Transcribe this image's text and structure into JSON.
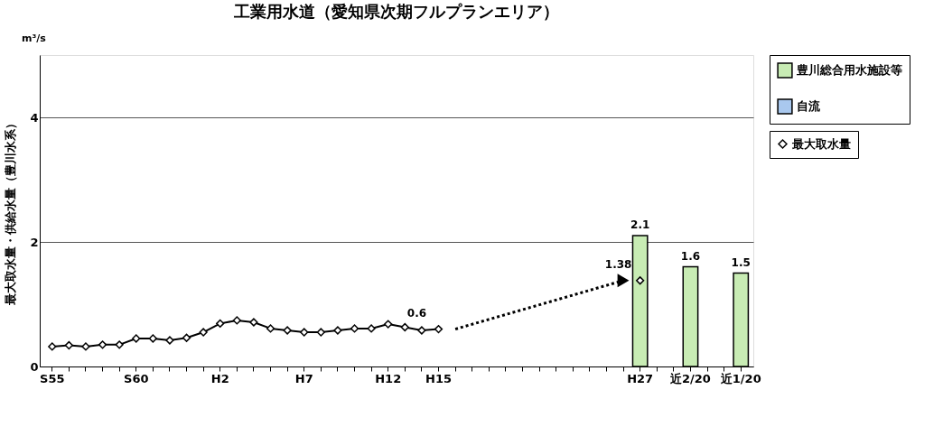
{
  "chart_data": {
    "type": "bar",
    "title": "工業用水道（愛知県次期フルプランエリア）",
    "ylabel": "最大取水量・供給水量（豊川水系）",
    "annotations": [
      "m³/s"
    ],
    "categories": [
      "S55",
      null,
      null,
      null,
      null,
      "S60",
      null,
      null,
      null,
      null,
      "H2",
      null,
      null,
      null,
      null,
      "H7",
      null,
      null,
      null,
      null,
      "H12",
      null,
      null,
      "H15",
      null,
      null,
      null,
      null,
      null,
      null,
      null,
      null,
      null,
      null,
      null,
      "H27",
      null,
      null,
      "近2/20",
      null,
      null,
      "近1/20"
    ],
    "ylim": [
      0,
      5
    ],
    "yticks": [
      0,
      2,
      4
    ],
    "grid": "y",
    "legend": "top right",
    "series": [
      {
        "name": "豊川総合用水施設等",
        "color": "#c8ecb4",
        "values": [
          null,
          null,
          null,
          null,
          null,
          null,
          null,
          null,
          null,
          null,
          null,
          null,
          null,
          null,
          null,
          null,
          null,
          null,
          null,
          null,
          null,
          null,
          null,
          null,
          null,
          null,
          null,
          null,
          null,
          null,
          null,
          null,
          null,
          null,
          null,
          2.1,
          null,
          null,
          1.6,
          null,
          null,
          1.5
        ],
        "value_labels": [
          null,
          null,
          null,
          null,
          null,
          null,
          null,
          null,
          null,
          null,
          null,
          null,
          null,
          null,
          null,
          null,
          null,
          null,
          null,
          null,
          null,
          null,
          null,
          null,
          null,
          null,
          null,
          null,
          null,
          null,
          null,
          null,
          null,
          null,
          null,
          "2.1",
          null,
          null,
          "1.6",
          null,
          null,
          "1.5"
        ]
      },
      {
        "name": "自流",
        "color": "#a9c8ee",
        "values": [
          null,
          null,
          null,
          null,
          null,
          null,
          null,
          null,
          null,
          null,
          null,
          null,
          null,
          null,
          null,
          null,
          null,
          null,
          null,
          null,
          null,
          null,
          null,
          null,
          null,
          null,
          null,
          null,
          null,
          null,
          null,
          null,
          null,
          null,
          null,
          null,
          null,
          null,
          null,
          null,
          null,
          null
        ]
      },
      {
        "name": "最大取水量",
        "type": "line",
        "color": "#000000",
        "marker": "diamond",
        "line_style": "solid",
        "values": [
          0.32,
          0.34,
          0.32,
          0.35,
          0.35,
          0.45,
          0.45,
          0.42,
          0.46,
          0.55,
          0.69,
          0.74,
          0.71,
          0.61,
          0.58,
          0.55,
          0.55,
          0.58,
          0.61,
          0.61,
          0.68,
          0.63,
          0.58,
          0.6,
          null,
          null,
          null,
          null,
          null,
          null,
          null,
          null,
          null,
          null,
          null,
          1.38,
          null,
          null,
          null,
          null,
          null,
          null
        ],
        "value_labels": [
          null,
          null,
          null,
          null,
          null,
          null,
          null,
          null,
          null,
          null,
          null,
          null,
          null,
          null,
          null,
          null,
          null,
          null,
          null,
          null,
          null,
          null,
          null,
          "0.6",
          null,
          null,
          null,
          null,
          null,
          null,
          null,
          null,
          null,
          null,
          null,
          "1.38",
          null,
          null,
          null,
          null,
          null,
          null
        ]
      }
    ]
  }
}
